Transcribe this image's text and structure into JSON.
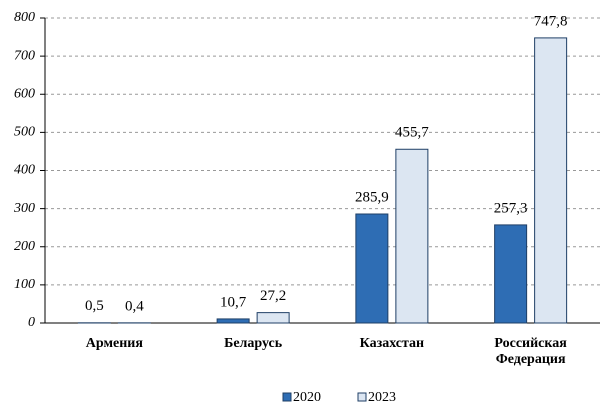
{
  "chart_data": {
    "type": "bar",
    "categories": [
      "Армения",
      "Беларусь",
      "Казахстан",
      "Российская Федерация"
    ],
    "series": [
      {
        "name": "2020",
        "color": "#2e6db4",
        "values": [
          0.5,
          10.7,
          285.9,
          257.3
        ],
        "value_labels": [
          "0,5",
          "10,7",
          "285,9",
          "257,3"
        ]
      },
      {
        "name": "2023",
        "color": "#dce6f2",
        "values": [
          0.4,
          27.2,
          455.7,
          747.8
        ],
        "value_labels": [
          "0,4",
          "27,2",
          "455,7",
          "747,8"
        ]
      }
    ],
    "ylim": [
      0,
      800
    ],
    "yticks": [
      0,
      100,
      200,
      300,
      400,
      500,
      600,
      700,
      800
    ],
    "grid": true,
    "legend": "bottom"
  }
}
